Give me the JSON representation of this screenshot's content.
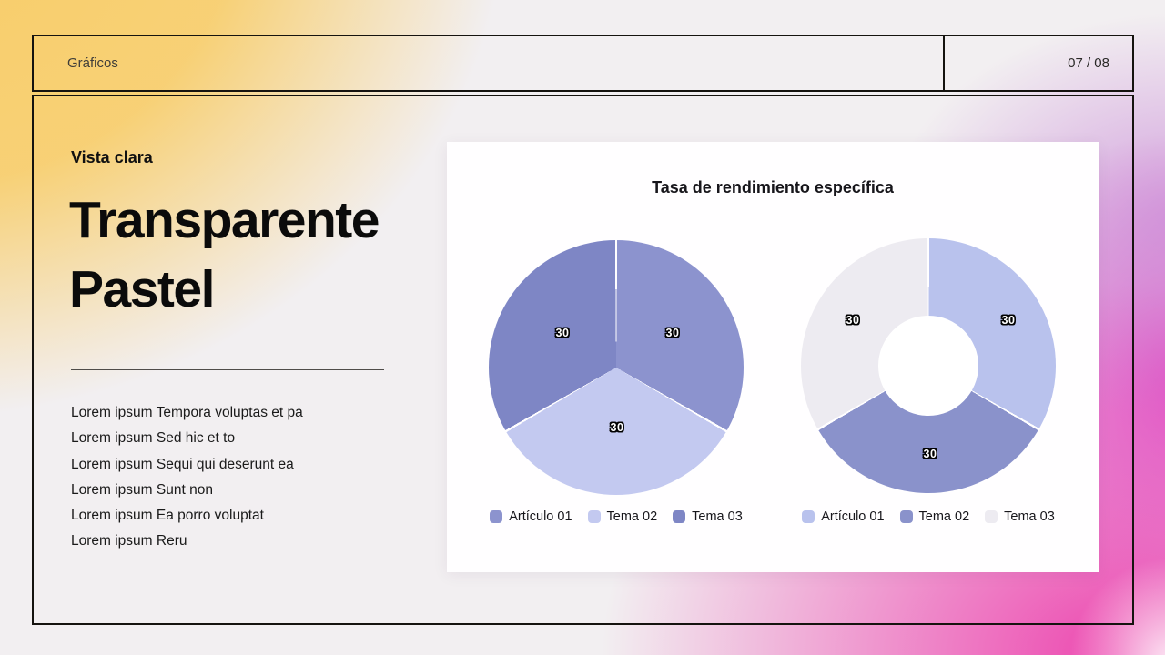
{
  "slide": {
    "header": {
      "title": "Gráficos",
      "page_number": "07 / 08"
    },
    "left_panel": {
      "kicker": "Vista clara",
      "heading_line1": "Transparente",
      "heading_line2": "Pastel",
      "bullets": [
        "Lorem ipsum Tempora voluptas et pa",
        "Lorem ipsum Sed hic et to",
        "Lorem ipsum Sequi qui deserunt ea",
        "Lorem ipsum Sunt non",
        "Lorem ipsum Ea porro voluptat",
        "Lorem ipsum Reru"
      ]
    },
    "chart_card": {
      "title": "Tasa de rendimiento específica"
    }
  },
  "chart_data": [
    {
      "type": "pie",
      "title": "Tasa de rendimiento específica",
      "categories": [
        "Artículo 01",
        "Tema 02",
        "Tema 03"
      ],
      "values": [
        30,
        30,
        30
      ],
      "colors": [
        "#8C93CE",
        "#C3C9F0",
        "#7E86C5"
      ],
      "data_labels": [
        30,
        30,
        30
      ],
      "start_angle_deg": 0,
      "legend_position": "bottom",
      "grid": false
    },
    {
      "type": "donut",
      "title": "Tasa de rendimiento específica",
      "categories": [
        "Artículo 01",
        "Tema 02",
        "Tema 03"
      ],
      "values": [
        30,
        30,
        30
      ],
      "colors": [
        "#B9C2ED",
        "#8A92CB",
        "#EDEBF1"
      ],
      "data_labels": [
        30,
        30,
        30
      ],
      "start_angle_deg": 0,
      "legend_position": "bottom",
      "grid": false
    }
  ],
  "theme": {
    "border_color": "#15130F",
    "card_background": "#FFFFFF",
    "accent_yellow": "#F8CD68",
    "accent_magenta": "#EC3EAC",
    "accent_purple": "#C784D6"
  }
}
